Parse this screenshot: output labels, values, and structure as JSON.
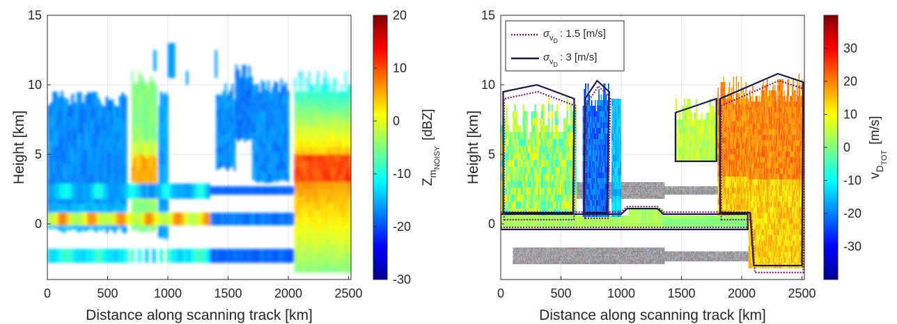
{
  "chart_data": [
    {
      "type": "heatmap",
      "xlabel": "Distance along scanning track [km]",
      "ylabel": "Height [km]",
      "xlim": [
        0,
        2520
      ],
      "ylim": [
        -4,
        15
      ],
      "xticks": [
        0,
        500,
        1000,
        1500,
        2000,
        2500
      ],
      "yticks": [
        0,
        5,
        10,
        15
      ],
      "grid": true,
      "colorbar": {
        "label_main": "Z",
        "label_sub": "m",
        "label_subsub": "NOISY",
        "label_unit": "[dBZ]",
        "range": [
          -30,
          20
        ],
        "ticks": [
          -30,
          -20,
          -10,
          0,
          10,
          20
        ],
        "colormap": "jet"
      },
      "features": [
        {
          "x": [
            0,
            1350
          ],
          "y": [
            2.4,
            2.4
          ],
          "dbz": -14,
          "type": "artifact_band"
        },
        {
          "x": [
            0,
            2050
          ],
          "y": [
            0.3,
            0.3
          ],
          "dbz": -4,
          "type": "surface_band"
        },
        {
          "x": [
            0,
            2050
          ],
          "y": [
            -2.3,
            -2.3
          ],
          "dbz": -15,
          "type": "mirror_band"
        },
        {
          "x": [
            700,
            880
          ],
          "y": [
            -0.5,
            11
          ],
          "dbz": 10,
          "type": "convection"
        },
        {
          "x": [
            2050,
            2520
          ],
          "y": [
            -3.5,
            10.8
          ],
          "dbz": 8,
          "type": "stratiform_precip"
        }
      ]
    },
    {
      "type": "heatmap",
      "xlabel": "Distance along scanning track [km]",
      "ylabel": "Height [km]",
      "xlim": [
        0,
        2520
      ],
      "ylim": [
        -4,
        15
      ],
      "xticks": [
        0,
        500,
        1000,
        1500,
        2000,
        2500
      ],
      "yticks": [
        0,
        5,
        10,
        15
      ],
      "grid": true,
      "colorbar": {
        "label_main": "v",
        "label_sub": "D",
        "label_subsub": "TOT",
        "label_unit": "[m/s]",
        "range": [
          -40,
          40
        ],
        "ticks": [
          -30,
          -20,
          -10,
          0,
          10,
          20,
          30
        ],
        "colormap": "jet"
      },
      "legend": {
        "placement": "top-left",
        "entries": [
          {
            "sym": "σ",
            "sub": "v",
            "subsub": "D",
            "text": ": 1.5 [m/s]",
            "style": "dotted",
            "color": "#8b1a6b"
          },
          {
            "sym": "σ",
            "sub": "v",
            "subsub": "D",
            "text": ": 3 [m/s]",
            "style": "solid",
            "color": "#16184a"
          }
        ]
      },
      "features": [
        {
          "x": [
            600,
            1000
          ],
          "y": [
            -0.2,
            10
          ],
          "vel": -25,
          "type": "convection"
        },
        {
          "x": [
            1900,
            2520
          ],
          "y": [
            -0.5,
            10.5
          ],
          "vel": 20,
          "type": "stratiform_precip"
        },
        {
          "x": [
            0,
            2050
          ],
          "y": [
            0.3,
            0.3
          ],
          "vel": 0,
          "type": "surface_band"
        }
      ]
    }
  ]
}
